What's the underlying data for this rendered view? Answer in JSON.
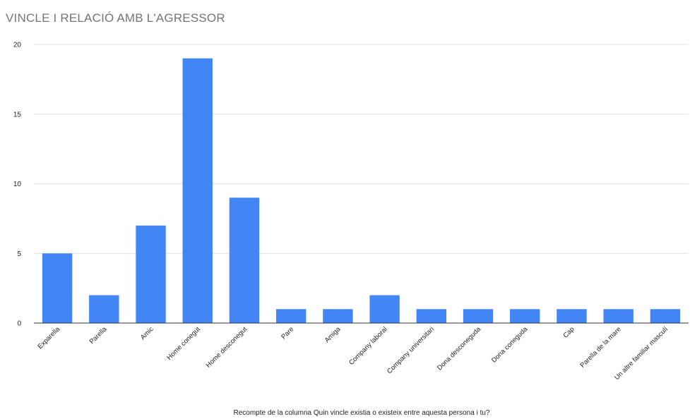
{
  "chart_data": {
    "type": "bar",
    "title": "VINCLE I RELACIÓ AMB L'AGRESSOR",
    "xlabel": "Recompte de la columna Quin vincle existia o existeix entre aquesta persona  i tu?",
    "ylabel": "",
    "categories": [
      "Exparella",
      "Parella",
      "Amic",
      "Home conegut",
      "Home desconegut",
      "Pare",
      "Amiga",
      "Company laboral",
      "Company universitari",
      "Dona desconeguda",
      "Dona coneguda",
      "Cap",
      "Parella de la mare",
      "Un altre familiar masculí"
    ],
    "values": [
      5,
      2,
      7,
      19,
      9,
      1,
      1,
      2,
      1,
      1,
      1,
      1,
      1,
      1
    ],
    "ylim": [
      0,
      20
    ],
    "yticks": [
      0,
      5,
      10,
      15,
      20
    ],
    "grid": true,
    "legend": "none",
    "colors": {
      "bar": "#4285f4",
      "grid": "#e0e0e0",
      "baseline": "#333333",
      "tick_text": "#222222",
      "title_text": "#757575"
    }
  }
}
